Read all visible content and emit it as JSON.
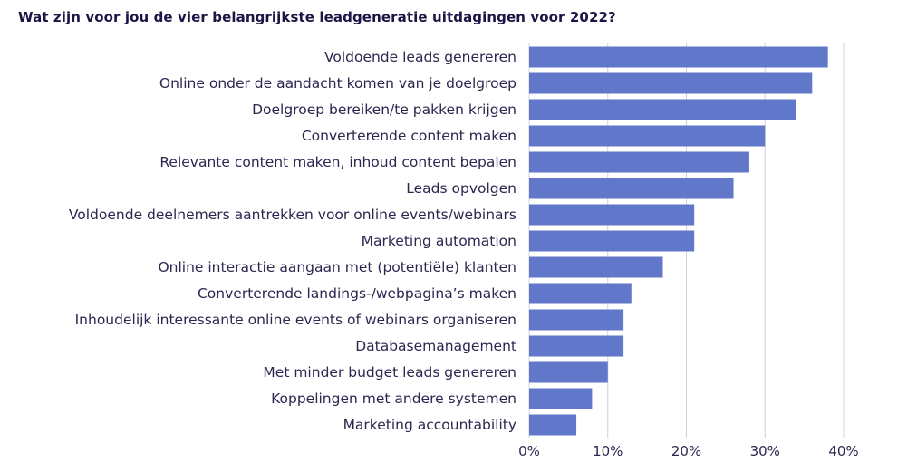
{
  "colors": {
    "bar": "#6177c9",
    "grid": "#d0d0dc",
    "title": "#1e1446",
    "text": "#2a2750"
  },
  "chart_data": {
    "type": "bar",
    "orientation": "horizontal",
    "title": "Wat zijn voor jou de vier belangrijkste leadgeneratie uitdagingen voor 2022?",
    "xlabel": "",
    "ylabel": "",
    "grid": true,
    "legend": "none",
    "xlim": [
      0,
      40
    ],
    "ticks": [
      0,
      10,
      20,
      30,
      40
    ],
    "tick_labels": [
      "0%",
      "10%",
      "20%",
      "30%",
      "40%"
    ],
    "categories": [
      "Voldoende leads genereren",
      "Online onder de aandacht komen van je doelgroep",
      "Doelgroep bereiken/te pakken krijgen",
      "Converterende content maken",
      "Relevante content maken, inhoud content bepalen",
      "Leads opvolgen",
      "Voldoende deelnemers aantrekken voor online events/webinars",
      "Marketing automation",
      "Online interactie aangaan met (potentiële) klanten",
      "Converterende landings-/webpagina’s maken",
      "Inhoudelijk interessante online events of webinars organiseren",
      "Databasemanagement",
      "Met minder budget leads genereren",
      "Koppelingen met andere systemen",
      "Marketing accountability"
    ],
    "values": [
      38,
      36,
      34,
      30,
      28,
      26,
      21,
      21,
      17,
      13,
      12,
      12,
      10,
      8,
      6
    ]
  }
}
